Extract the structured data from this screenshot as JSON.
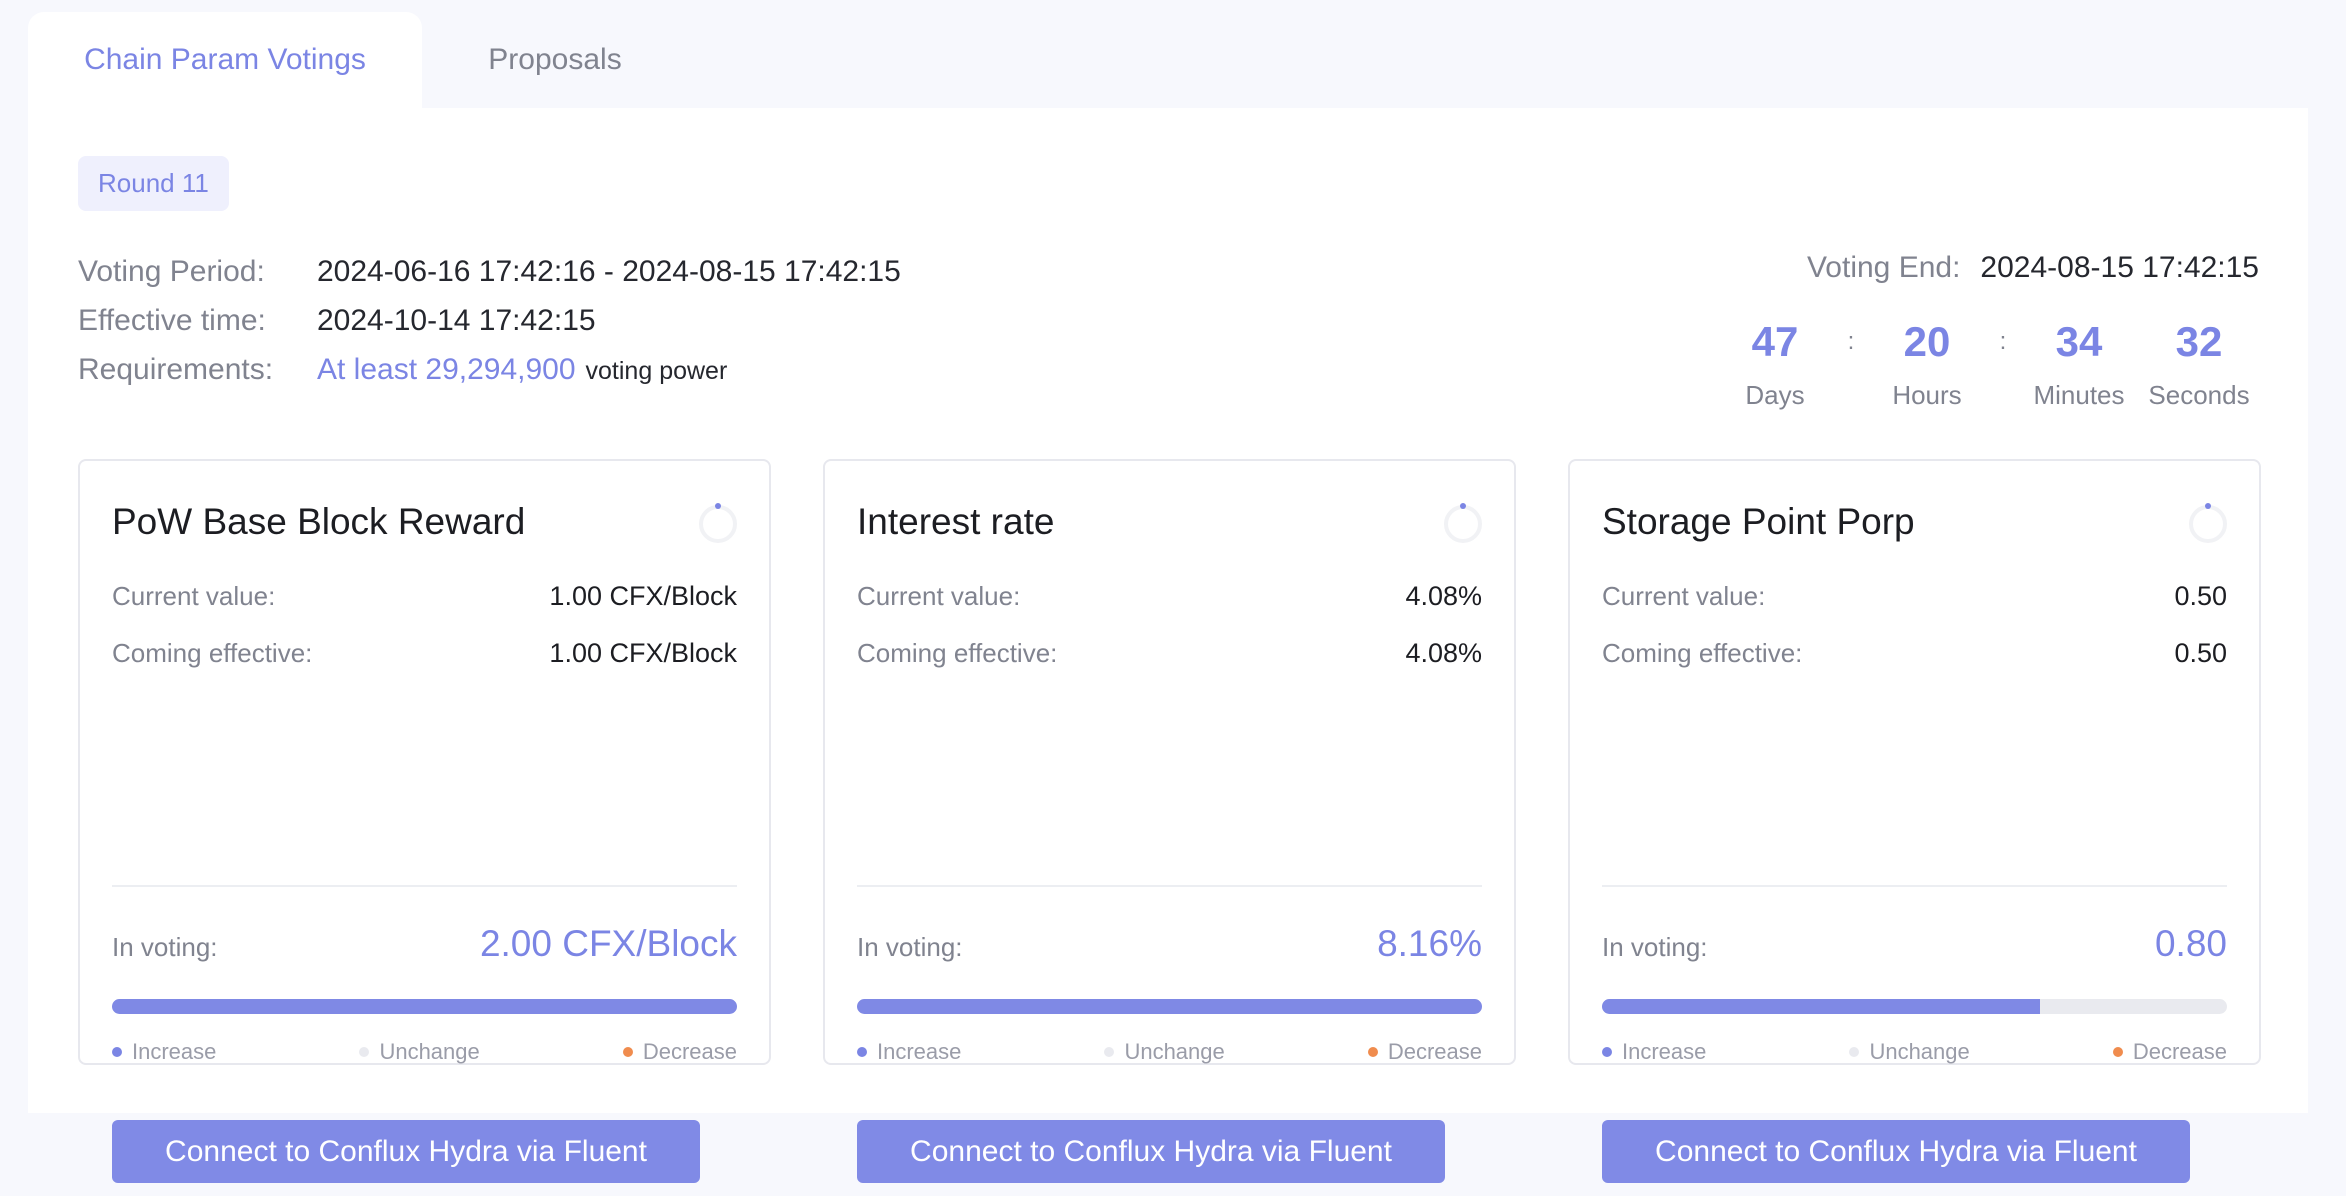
{
  "tabs": [
    {
      "label": "Chain Param Votings",
      "active": true
    },
    {
      "label": "Proposals",
      "active": false
    }
  ],
  "round": "Round 11",
  "info": {
    "voting_period_label": "Voting Period:",
    "voting_period": "2024-06-16 17:42:16 - 2024-08-15 17:42:15",
    "effective_label": "Effective time:",
    "effective": "2024-10-14 17:42:15",
    "requirements_label": "Requirements:",
    "requirements_value": "At least 29,294,900",
    "requirements_suffix": "voting power"
  },
  "voting_end": {
    "label": "Voting End:",
    "value": "2024-08-15 17:42:15"
  },
  "countdown": {
    "days": "47",
    "days_label": "Days",
    "hours": "20",
    "hours_label": "Hours",
    "minutes": "34",
    "minutes_label": "Minutes",
    "seconds": "32",
    "seconds_label": "Seconds",
    "separator": ":"
  },
  "labels": {
    "current": "Current value:",
    "coming": "Coming effective:",
    "in_voting": "In voting:",
    "increase": "Increase",
    "unchange": "Unchange",
    "decrease": "Decrease",
    "connect": "Connect to Conflux Hydra via Fluent"
  },
  "colors": {
    "accent": "#7b85e4",
    "increase": "#7b85e4",
    "unchange": "#e9eaef",
    "decrease": "#f08c4e"
  },
  "cards": [
    {
      "title": "PoW Base Block Reward",
      "current": "1.00 CFX/Block",
      "coming": "1.00 CFX/Block",
      "in_voting": "2.00 CFX/Block",
      "increase_pct": 100
    },
    {
      "title": "Interest rate",
      "current": "4.08%",
      "coming": "4.08%",
      "in_voting": "8.16%",
      "increase_pct": 100
    },
    {
      "title": "Storage Point Porp",
      "current": "0.50",
      "coming": "0.50",
      "in_voting": "0.80",
      "increase_pct": 70
    }
  ]
}
